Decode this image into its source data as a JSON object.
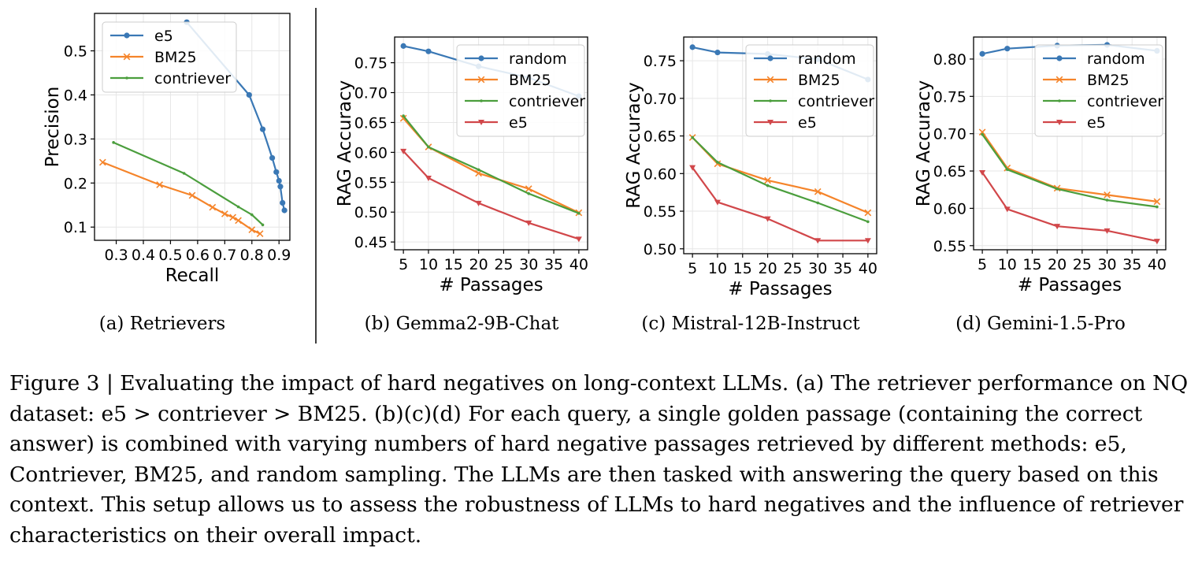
{
  "colors": {
    "blue": "#3a78b5",
    "orange": "#f5842a",
    "green": "#4b9e3d",
    "red": "#d1474a"
  },
  "chart_data": [
    {
      "panel": "a",
      "type": "line",
      "subcaption": "(a)  Retrievers",
      "xlabel": "Recall",
      "ylabel": "Precision",
      "xlim": [
        0.22,
        0.94
      ],
      "ylim": [
        0.07,
        0.585
      ],
      "xticks": [
        0.3,
        0.4,
        0.5,
        0.6,
        0.7,
        0.8,
        0.9
      ],
      "yticks": [
        0.1,
        0.2,
        0.3,
        0.4,
        0.5
      ],
      "xtick_labels": [
        "0.3",
        "0.4",
        "0.5",
        "0.6",
        "0.7",
        "0.8",
        "0.9"
      ],
      "ytick_labels": [
        "0.1",
        "0.2",
        "0.3",
        "0.4",
        "0.5"
      ],
      "legend": "upper-left",
      "series": [
        {
          "name": "e5",
          "color": "blue",
          "marker": "circle",
          "x": [
            0.56,
            0.79,
            0.84,
            0.875,
            0.89,
            0.9,
            0.905,
            0.913,
            0.92
          ],
          "y": [
            0.565,
            0.4,
            0.322,
            0.257,
            0.225,
            0.205,
            0.192,
            0.155,
            0.138
          ]
        },
        {
          "name": "BM25",
          "color": "orange",
          "marker": "x",
          "x": [
            0.25,
            0.46,
            0.58,
            0.655,
            0.7,
            0.73,
            0.75,
            0.8,
            0.83
          ],
          "y": [
            0.247,
            0.196,
            0.172,
            0.145,
            0.13,
            0.122,
            0.115,
            0.094,
            0.085
          ]
        },
        {
          "name": "contriever",
          "color": "green",
          "marker": "dot",
          "x": [
            0.29,
            0.55,
            0.75,
            0.8,
            0.84
          ],
          "y": [
            0.292,
            0.222,
            0.146,
            0.128,
            0.105
          ]
        }
      ]
    },
    {
      "panel": "b",
      "type": "line",
      "subcaption": "(b)  Gemma2-9B-Chat",
      "xlabel": "# Passages",
      "ylabel": "RAG Accuracy",
      "xlim": [
        3.25,
        41.75
      ],
      "ylim": [
        0.437,
        0.793
      ],
      "xticks": [
        5,
        10,
        15,
        20,
        25,
        30,
        35,
        40
      ],
      "yticks": [
        0.45,
        0.5,
        0.55,
        0.6,
        0.65,
        0.7,
        0.75
      ],
      "xtick_labels": [
        "5",
        "10",
        "15",
        "20",
        "25",
        "30",
        "35",
        "40"
      ],
      "ytick_labels": [
        "0.45",
        "0.50",
        "0.55",
        "0.60",
        "0.65",
        "0.70",
        "0.75"
      ],
      "legend": "upper-right",
      "x": [
        5,
        10,
        20,
        30,
        40
      ],
      "series": [
        {
          "name": "random",
          "color": "blue",
          "marker": "circle",
          "values": [
            0.778,
            0.769,
            0.744,
            0.725,
            0.694
          ]
        },
        {
          "name": "BM25",
          "color": "orange",
          "marker": "x",
          "values": [
            0.657,
            0.609,
            0.565,
            0.539,
            0.499
          ]
        },
        {
          "name": "contriever",
          "color": "green",
          "marker": "dot",
          "values": [
            0.661,
            0.609,
            0.571,
            0.531,
            0.498
          ]
        },
        {
          "name": "e5",
          "color": "red",
          "marker": "triangle",
          "values": [
            0.602,
            0.557,
            0.515,
            0.482,
            0.455
          ]
        }
      ]
    },
    {
      "panel": "c",
      "type": "line",
      "subcaption": "(c)  Mistral-12B-Instruct",
      "xlabel": "# Passages",
      "ylabel": "RAG Accuracy",
      "xlim": [
        3.25,
        41.75
      ],
      "ylim": [
        0.4935,
        0.7815
      ],
      "xticks": [
        5,
        10,
        15,
        20,
        25,
        30,
        35,
        40
      ],
      "yticks": [
        0.5,
        0.55,
        0.6,
        0.65,
        0.7,
        0.75
      ],
      "xtick_labels": [
        "5",
        "10",
        "15",
        "20",
        "25",
        "30",
        "35",
        "40"
      ],
      "ytick_labels": [
        "0.50",
        "0.55",
        "0.60",
        "0.65",
        "0.70",
        "0.75"
      ],
      "legend": "upper-right",
      "x": [
        5,
        10,
        20,
        30,
        40
      ],
      "series": [
        {
          "name": "random",
          "color": "blue",
          "marker": "circle",
          "values": [
            0.768,
            0.761,
            0.759,
            0.752,
            0.725
          ]
        },
        {
          "name": "BM25",
          "color": "orange",
          "marker": "x",
          "values": [
            0.648,
            0.613,
            0.591,
            0.576,
            0.548
          ]
        },
        {
          "name": "contriever",
          "color": "green",
          "marker": "dot",
          "values": [
            0.648,
            0.615,
            0.584,
            0.561,
            0.536
          ]
        },
        {
          "name": "e5",
          "color": "red",
          "marker": "triangle",
          "values": [
            0.608,
            0.562,
            0.54,
            0.511,
            0.511
          ]
        }
      ]
    },
    {
      "panel": "d",
      "type": "line",
      "subcaption": "(d)  Gemini-1.5-Pro",
      "xlabel": "# Passages",
      "ylabel": "RAG Accuracy",
      "xlim": [
        3.25,
        41.75
      ],
      "ylim": [
        0.5445,
        0.8295
      ],
      "xticks": [
        5,
        10,
        15,
        20,
        25,
        30,
        35,
        40
      ],
      "yticks": [
        0.55,
        0.6,
        0.65,
        0.7,
        0.75,
        0.8
      ],
      "xtick_labels": [
        "5",
        "10",
        "15",
        "20",
        "25",
        "30",
        "35",
        "40"
      ],
      "ytick_labels": [
        "0.55",
        "0.60",
        "0.65",
        "0.70",
        "0.75",
        "0.80"
      ],
      "legend": "upper-right",
      "x": [
        5,
        10,
        20,
        30,
        40
      ],
      "series": [
        {
          "name": "random",
          "color": "blue",
          "marker": "circle",
          "values": [
            0.807,
            0.814,
            0.818,
            0.819,
            0.811
          ]
        },
        {
          "name": "BM25",
          "color": "orange",
          "marker": "x",
          "values": [
            0.702,
            0.654,
            0.627,
            0.618,
            0.609
          ]
        },
        {
          "name": "contriever",
          "color": "green",
          "marker": "dot",
          "values": [
            0.699,
            0.652,
            0.626,
            0.611,
            0.602
          ]
        },
        {
          "name": "e5",
          "color": "red",
          "marker": "triangle",
          "values": [
            0.648,
            0.599,
            0.576,
            0.57,
            0.556
          ]
        }
      ]
    }
  ],
  "caption": {
    "text": "Figure 3 | Evaluating the impact of hard negatives on long-context LLMs. (a) The retriever performance on NQ dataset: e5 > contriever > BM25. (b)(c)(d) For each query, a single golden passage (containing the correct answer) is combined with varying numbers of hard negative passages retrieved by different methods: e5, Contriever, BM25, and random sampling. The LLMs are then tasked with answering the query based on this context. This setup allows us to assess the robustness of LLMs to hard negatives and the influence of retriever characteristics on their overall impact."
  }
}
